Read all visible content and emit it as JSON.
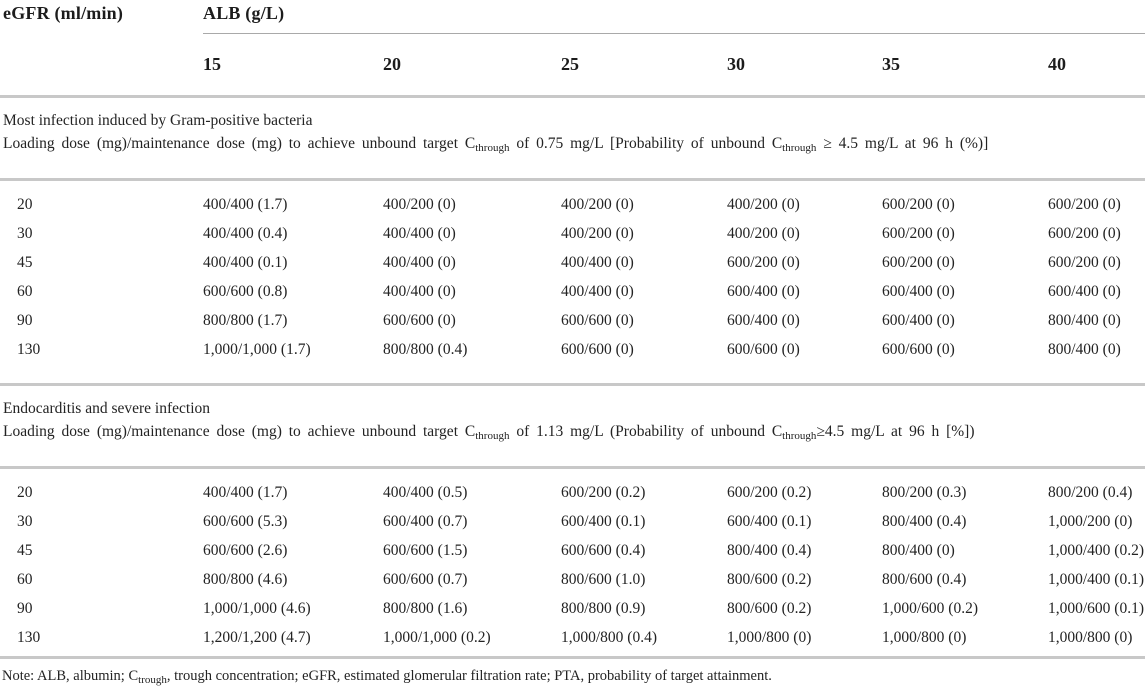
{
  "table": {
    "corner_header": "eGFR (ml/min)",
    "group_header": "ALB (g/L)",
    "alb_columns": [
      "15",
      "20",
      "25",
      "30",
      "35",
      "40"
    ],
    "sections": [
      {
        "title": "Most infection induced by Gram-positive bacteria",
        "subtitle": {
          "p1": "Loading dose (mg)/maintenance dose (mg) to achieve unbound target C",
          "s1": "through",
          "p2": " of 0.75 mg/L [Probability of unbound C",
          "s2": "through",
          "p3": " ≥ 4.5 mg/L at 96 h (%)]"
        },
        "rows": [
          {
            "egfr": "20",
            "values": [
              "400/400 (1.7)",
              "400/200 (0)",
              "400/200 (0)",
              "400/200 (0)",
              "600/200 (0)",
              "600/200 (0)"
            ]
          },
          {
            "egfr": "30",
            "values": [
              "400/400 (0.4)",
              "400/400 (0)",
              "400/200 (0)",
              "400/200 (0)",
              "600/200 (0)",
              "600/200 (0)"
            ]
          },
          {
            "egfr": "45",
            "values": [
              "400/400 (0.1)",
              "400/400 (0)",
              "400/400 (0)",
              "600/200 (0)",
              "600/200 (0)",
              "600/200 (0)"
            ]
          },
          {
            "egfr": "60",
            "values": [
              "600/600 (0.8)",
              "400/400 (0)",
              "400/400 (0)",
              "600/400 (0)",
              "600/400 (0)",
              "600/400 (0)"
            ]
          },
          {
            "egfr": "90",
            "values": [
              "800/800 (1.7)",
              "600/600 (0)",
              "600/600 (0)",
              "600/400 (0)",
              "600/400 (0)",
              "800/400 (0)"
            ]
          },
          {
            "egfr": "130",
            "values": [
              "1,000/1,000 (1.7)",
              "800/800 (0.4)",
              "600/600 (0)",
              "600/600 (0)",
              "600/600 (0)",
              "800/400 (0)"
            ]
          }
        ]
      },
      {
        "title": "Endocarditis and severe infection",
        "subtitle": {
          "p1": "Loading dose (mg)/maintenance dose (mg) to achieve unbound target C",
          "s1": "through",
          "p2": " of 1.13 mg/L (Probability of unbound C",
          "s2": "through",
          "p3": "≥4.5 mg/L at 96 h [%])"
        },
        "rows": [
          {
            "egfr": "20",
            "values": [
              "400/400 (1.7)",
              "400/400 (0.5)",
              "600/200 (0.2)",
              "600/200 (0.2)",
              "800/200 (0.3)",
              "800/200 (0.4)"
            ]
          },
          {
            "egfr": "30",
            "values": [
              "600/600 (5.3)",
              "600/400 (0.7)",
              "600/400 (0.1)",
              "600/400 (0.1)",
              "800/400 (0.4)",
              "1,000/200 (0)"
            ]
          },
          {
            "egfr": "45",
            "values": [
              "600/600 (2.6)",
              "600/600 (1.5)",
              "600/600 (0.4)",
              "800/400 (0.4)",
              "800/400 (0)",
              "1,000/400 (0.2)"
            ]
          },
          {
            "egfr": "60",
            "values": [
              "800/800 (4.6)",
              "600/600 (0.7)",
              "800/600 (1.0)",
              "800/600 (0.2)",
              "800/600 (0.4)",
              "1,000/400 (0.1)"
            ]
          },
          {
            "egfr": "90",
            "values": [
              "1,000/1,000 (4.6)",
              "800/800 (1.6)",
              "800/800 (0.9)",
              "800/600 (0.2)",
              "1,000/600 (0.2)",
              "1,000/600 (0.1)"
            ]
          },
          {
            "egfr": "130",
            "values": [
              "1,200/1,200 (4.7)",
              "1,000/1,000 (0.2)",
              "1,000/800 (0.4)",
              "1,000/800 (0)",
              "1,000/800 (0)",
              "1,000/800 (0)"
            ]
          }
        ]
      }
    ],
    "note": {
      "p1": "Note: ALB, albumin; C",
      "s1": "trough",
      "p2": ", trough concentration; eGFR, estimated glomerular filtration rate; PTA, probability of target attainment."
    }
  }
}
